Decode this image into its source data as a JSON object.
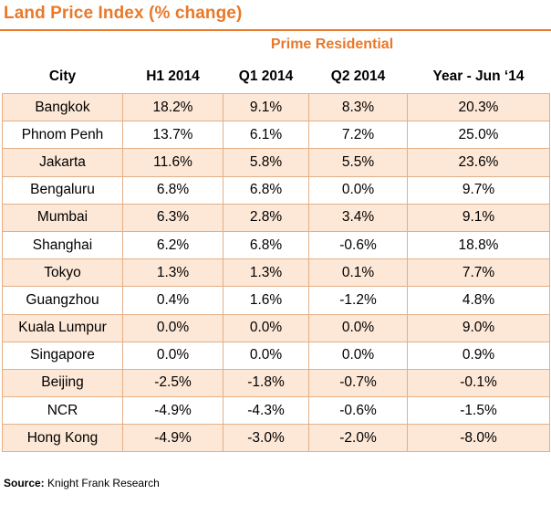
{
  "title": "Land Price Index (% change)",
  "subtitle": "Prime Residential",
  "columns": [
    "City",
    "H1 2014",
    "Q1 2014",
    "Q2 2014",
    "Year - Jun ‘14"
  ],
  "rows": [
    [
      "Bangkok",
      "18.2%",
      "9.1%",
      "8.3%",
      "20.3%"
    ],
    [
      "Phnom Penh",
      "13.7%",
      "6.1%",
      "7.2%",
      "25.0%"
    ],
    [
      "Jakarta",
      "11.6%",
      "5.8%",
      "5.5%",
      "23.6%"
    ],
    [
      "Bengaluru",
      "6.8%",
      "6.8%",
      "0.0%",
      "9.7%"
    ],
    [
      "Mumbai",
      "6.3%",
      "2.8%",
      "3.4%",
      "9.1%"
    ],
    [
      "Shanghai",
      "6.2%",
      "6.8%",
      "-0.6%",
      "18.8%"
    ],
    [
      "Tokyo",
      "1.3%",
      "1.3%",
      "0.1%",
      "7.7%"
    ],
    [
      "Guangzhou",
      "0.4%",
      "1.6%",
      "-1.2%",
      "4.8%"
    ],
    [
      "Kuala Lumpur",
      "0.0%",
      "0.0%",
      "0.0%",
      "9.0%"
    ],
    [
      "Singapore",
      "0.0%",
      "0.0%",
      "0.0%",
      "0.9%"
    ],
    [
      "Beijing",
      "-2.5%",
      "-1.8%",
      "-0.7%",
      "-0.1%"
    ],
    [
      "NCR",
      "-4.9%",
      "-4.3%",
      "-0.6%",
      "-1.5%"
    ],
    [
      "Hong Kong",
      "-4.9%",
      "-3.0%",
      "-2.0%",
      "-8.0%"
    ]
  ],
  "source": {
    "label": "Source:",
    "text": "Knight Frank Research"
  },
  "colors": {
    "accent": "#e8792b",
    "shade": "#fde7d6",
    "border": "#e3b088"
  }
}
